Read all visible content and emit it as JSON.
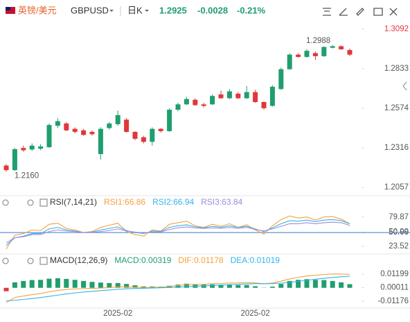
{
  "header": {
    "pair_name": "英镑/美元",
    "symbol": "GBPUSD",
    "period": "日K",
    "price": "1.2925",
    "change": "-0.0028",
    "change_pct": "-0.21%"
  },
  "chart_data": [
    {
      "type": "candlestick",
      "up_color": "#1f9e6e",
      "down_color": "#e0373a",
      "categories": [
        null,
        null,
        null,
        null,
        null,
        null,
        null,
        null,
        null,
        null,
        null,
        null,
        null,
        "2025-02",
        null,
        null,
        null,
        null,
        null,
        null,
        null,
        null,
        null,
        null,
        null,
        null,
        null,
        null,
        null,
        "2025-02",
        null,
        null,
        null,
        null,
        null,
        null,
        null,
        null,
        null,
        null,
        null
      ],
      "open": [
        1.22,
        1.217,
        1.2315,
        1.2305,
        1.231,
        1.232,
        1.246,
        1.2475,
        1.244,
        1.243,
        1.242,
        1.2275,
        1.2445,
        1.247,
        1.25,
        1.242,
        1.2385,
        1.2355,
        1.244,
        1.2425,
        1.2565,
        1.26,
        1.263,
        1.26,
        1.26,
        1.2665,
        1.264,
        1.267,
        1.264,
        1.268,
        1.2615,
        1.259,
        1.27,
        1.283,
        1.2925,
        1.291,
        1.2935,
        1.2915,
        1.297,
        1.298,
        1.2955
      ],
      "high": [
        1.221,
        1.2315,
        1.233,
        1.2345,
        1.234,
        1.2475,
        1.251,
        1.2485,
        1.245,
        1.244,
        1.243,
        1.245,
        1.2485,
        1.256,
        1.251,
        1.2425,
        1.2395,
        1.245,
        1.2445,
        1.2575,
        1.261,
        1.265,
        1.264,
        1.261,
        1.2665,
        1.269,
        1.27,
        1.268,
        1.272,
        1.2695,
        1.262,
        1.2725,
        1.284,
        1.2935,
        1.2935,
        1.296,
        1.2945,
        1.298,
        1.2988,
        1.2985,
        1.2965
      ],
      "low": [
        1.216,
        1.2165,
        1.229,
        1.2295,
        1.23,
        1.2315,
        1.2445,
        1.2425,
        1.241,
        1.2395,
        1.2395,
        1.224,
        1.2435,
        1.246,
        1.2415,
        1.2365,
        1.2345,
        1.233,
        1.2415,
        1.242,
        1.2555,
        1.2595,
        1.259,
        1.258,
        1.2595,
        1.2635,
        1.2635,
        1.2635,
        1.2635,
        1.261,
        1.2565,
        1.2585,
        1.2695,
        1.2825,
        1.2905,
        1.2905,
        1.289,
        1.291,
        1.2965,
        1.2955,
        1.2915
      ],
      "close": [
        1.217,
        1.2307,
        1.23,
        1.233,
        1.2325,
        1.2465,
        1.249,
        1.243,
        1.242,
        1.24,
        1.2405,
        1.244,
        1.2475,
        1.253,
        1.242,
        1.2375,
        1.2355,
        1.244,
        1.2425,
        1.2565,
        1.26,
        1.2635,
        1.2595,
        1.259,
        1.2655,
        1.264,
        1.2685,
        1.264,
        1.268,
        1.2615,
        1.2575,
        1.2715,
        1.283,
        1.2925,
        1.291,
        1.295,
        1.2915,
        1.2975,
        1.298,
        1.296,
        1.2925
      ],
      "max_label": {
        "value": 1.2988,
        "label": "1.2988"
      },
      "min_label": {
        "value": 1.216,
        "label": "1.2160"
      },
      "ylim": [
        1.2012,
        1.3146
      ],
      "yticks": [
        1.3092,
        1.2833,
        1.2574,
        1.2316,
        1.2057
      ]
    },
    {
      "type": "line",
      "title": "RSI(7,14,21)",
      "series": [
        {
          "name": "RSI1:66.86",
          "color": "#f5a03a",
          "values": [
            18,
            45,
            48,
            55,
            54,
            66,
            68,
            58,
            55,
            50,
            52,
            60,
            64,
            68,
            52,
            46,
            43,
            55,
            53,
            66,
            69,
            72,
            63,
            60,
            66,
            62,
            67,
            60,
            65,
            55,
            47,
            63,
            75,
            82,
            78,
            80,
            74,
            80,
            81,
            76,
            66.86
          ]
        },
        {
          "name": "RSI2:66.94",
          "color": "#33b3e8",
          "values": [
            25,
            40,
            43,
            48,
            48,
            57,
            60,
            55,
            53,
            50,
            51,
            55,
            58,
            61,
            54,
            50,
            48,
            53,
            52,
            60,
            63,
            65,
            61,
            59,
            62,
            60,
            63,
            60,
            62,
            57,
            52,
            59,
            67,
            73,
            72,
            74,
            71,
            74,
            75,
            73,
            66.94
          ]
        },
        {
          "name": "RSI3:63.84",
          "color": "#a08ad8",
          "values": [
            30,
            40,
            42,
            46,
            46,
            52,
            55,
            53,
            52,
            50,
            50,
            52,
            54,
            57,
            53,
            51,
            49,
            51,
            51,
            56,
            59,
            61,
            59,
            58,
            59,
            58,
            60,
            58,
            60,
            56,
            53,
            57,
            62,
            67,
            67,
            69,
            67,
            69,
            70,
            69,
            63.84
          ]
        }
      ],
      "ref_line": {
        "value": 50,
        "color": "#3a7bd5"
      },
      "ylim": [
        14,
        97
      ],
      "yticks": [
        79.87,
        50.99,
        {
          "value": 50,
          "label": "50.00"
        },
        23.52
      ]
    },
    {
      "type": "bar-line",
      "title": "MACD(12,26,9)",
      "series": [
        {
          "name": "MACD:0.00319",
          "kind": "bar",
          "color": "#1f9e6e",
          "negative_color": "#e0373a",
          "values": [
            -0.003,
            0.0048,
            0.006,
            0.0068,
            0.007,
            0.008,
            0.0084,
            0.0078,
            0.007,
            0.006,
            0.0052,
            0.0046,
            0.0042,
            0.0042,
            0.0034,
            0.0022,
            0.0012,
            0.0012,
            0.001,
            0.0018,
            0.0028,
            0.0036,
            0.0032,
            0.0028,
            0.003,
            0.0028,
            0.0028,
            0.0024,
            0.0024,
            0.0014,
            0.0002,
            0.001,
            0.0034,
            0.006,
            0.007,
            0.0076,
            0.007,
            0.0068,
            0.006,
            0.0048,
            0.00319
          ]
        },
        {
          "name": "DIF:0.01178",
          "kind": "line",
          "color": "#f5a03a",
          "values": [
            -0.013,
            -0.0085,
            -0.0072,
            -0.006,
            -0.005,
            -0.0035,
            -0.0022,
            -0.0015,
            -0.001,
            -0.0007,
            -0.0005,
            -0.0002,
            0.0002,
            0.0008,
            0.0008,
            0.0005,
            0.0002,
            0.0004,
            0.0005,
            0.0012,
            0.002,
            0.0028,
            0.003,
            0.0031,
            0.0036,
            0.0038,
            0.0042,
            0.0043,
            0.0046,
            0.0043,
            0.0036,
            0.0042,
            0.0058,
            0.0078,
            0.0092,
            0.0104,
            0.011,
            0.0117,
            0.0121,
            0.0121,
            0.01178
          ]
        },
        {
          "name": "DEA:0.01019",
          "kind": "line",
          "color": "#33b3e8",
          "values": [
            -0.0115,
            -0.0109,
            -0.0102,
            -0.0094,
            -0.0085,
            -0.0075,
            -0.0064,
            -0.0054,
            -0.0045,
            -0.0037,
            -0.0031,
            -0.0025,
            -0.0019,
            -0.0013,
            -0.0009,
            -0.0006,
            -0.0004,
            -0.0002,
            0,
            0.0003,
            0.0006,
            0.001,
            0.0014,
            0.0017,
            0.0021,
            0.0024,
            0.0028,
            0.0031,
            0.0034,
            0.0036,
            0.0036,
            0.0037,
            0.0041,
            0.0048,
            0.0057,
            0.0066,
            0.0075,
            0.0083,
            0.0091,
            0.0097,
            0.01019
          ]
        }
      ],
      "ylim": [
        -0.0166,
        0.0181
      ],
      "yticks": [
        0.01199,
        0.00011,
        -0.01176
      ]
    }
  ]
}
